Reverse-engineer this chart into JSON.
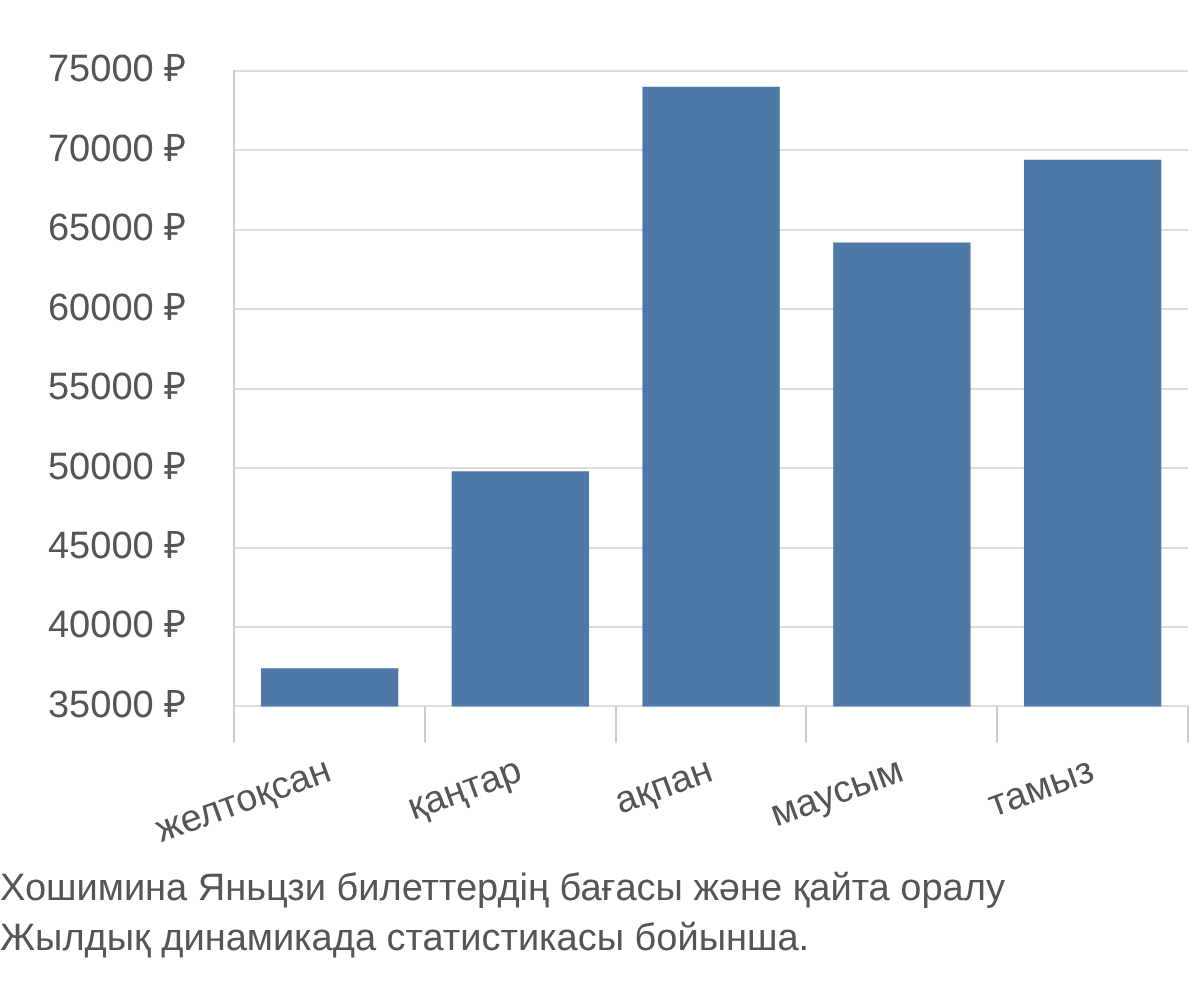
{
  "chart_data": {
    "type": "bar",
    "categories": [
      "желтоқсан",
      "қаңтар",
      "ақпан",
      "маусым",
      "тамыз"
    ],
    "values": [
      37400,
      49800,
      74000,
      64200,
      69400
    ],
    "color": "#4e79a7",
    "ylim": [
      35000,
      75000
    ],
    "yticks": [
      {
        "value": 35000,
        "label": "35000 ₽"
      },
      {
        "value": 40000,
        "label": "40000 ₽"
      },
      {
        "value": 45000,
        "label": "45000 ₽"
      },
      {
        "value": 50000,
        "label": "50000 ₽"
      },
      {
        "value": 55000,
        "label": "55000 ₽"
      },
      {
        "value": 60000,
        "label": "60000 ₽"
      },
      {
        "value": 65000,
        "label": "65000 ₽"
      },
      {
        "value": 70000,
        "label": "70000 ₽"
      },
      {
        "value": 75000,
        "label": "75000 ₽"
      }
    ],
    "grid": "y",
    "annotations": [
      "Хошимина Яньцзи билеттердің бағасы және қайта оралу",
      "Жылдық динамикада статистикасы бойынша."
    ]
  }
}
